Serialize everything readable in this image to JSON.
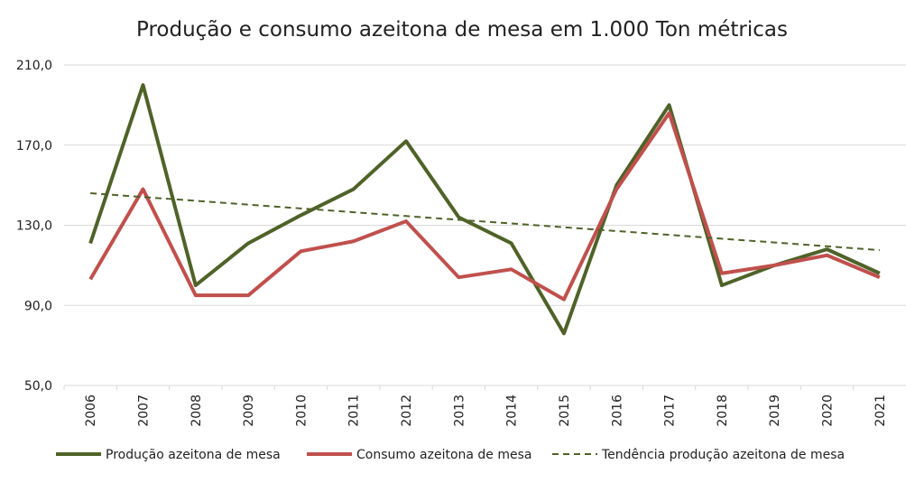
{
  "chart_data": {
    "type": "line",
    "title": "Produção e consumo azeitona de mesa em 1.000 Ton métricas",
    "xlabel": "",
    "ylabel": "",
    "categories": [
      "2006",
      "2007",
      "2008",
      "2009",
      "2010",
      "2011",
      "2012",
      "2013",
      "2014",
      "2015",
      "2016",
      "2017",
      "2018",
      "2019",
      "2020",
      "2021"
    ],
    "ylim": [
      50,
      210
    ],
    "yticks": [
      "50,0",
      "90,0",
      "130,0",
      "170,0",
      "210,0"
    ],
    "ytick_values": [
      50,
      90,
      130,
      170,
      210
    ],
    "grid": true,
    "legend_placement": "bottom",
    "series": [
      {
        "name": "Produção azeitona de mesa",
        "color": "#4f6228",
        "style": "solid",
        "values": [
          121,
          200,
          100,
          121,
          135,
          148,
          172,
          134,
          121,
          76,
          150,
          190,
          100,
          110,
          118,
          106
        ]
      },
      {
        "name": "Consumo azeitona de mesa",
        "color": "#c0504d",
        "style": "solid",
        "values": [
          103,
          148,
          95,
          95,
          117,
          122,
          132,
          104,
          108,
          93,
          148,
          186,
          106,
          110,
          115,
          104
        ]
      },
      {
        "name": "Tendência produção azeitona de mesa",
        "color": "#4f6228",
        "style": "dashed",
        "values": [
          146,
          144.1,
          142.2,
          140.3,
          138.4,
          136.5,
          134.6,
          132.7,
          130.9,
          129,
          127.1,
          125.2,
          123.3,
          121.4,
          119.5,
          117.6
        ]
      }
    ]
  }
}
